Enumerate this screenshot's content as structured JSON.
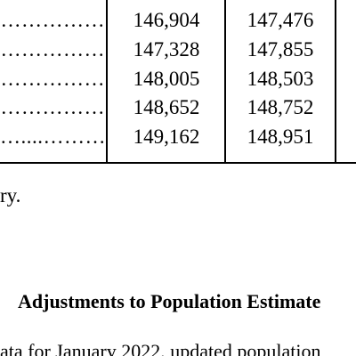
{
  "table": {
    "partial_row": {
      "col1": "",
      "col2": ""
    },
    "rows": [
      {
        "leader": "……………",
        "col1": "146,904",
        "col2": "147,476"
      },
      {
        "leader": "……………",
        "col1": "147,328",
        "col2": "147,855"
      },
      {
        "leader": "……………",
        "col1": "148,005",
        "col2": "148,503"
      },
      {
        "leader": "……………",
        "col1": "148,652",
        "col2": "148,752"
      },
      {
        "leader": "…....………",
        "col1": "149,162",
        "col2": "148,951"
      }
    ]
  },
  "note": "ry.",
  "section_heading": "Adjustments to Population Estimate",
  "body_text": "ata for January 2022, updated population"
}
